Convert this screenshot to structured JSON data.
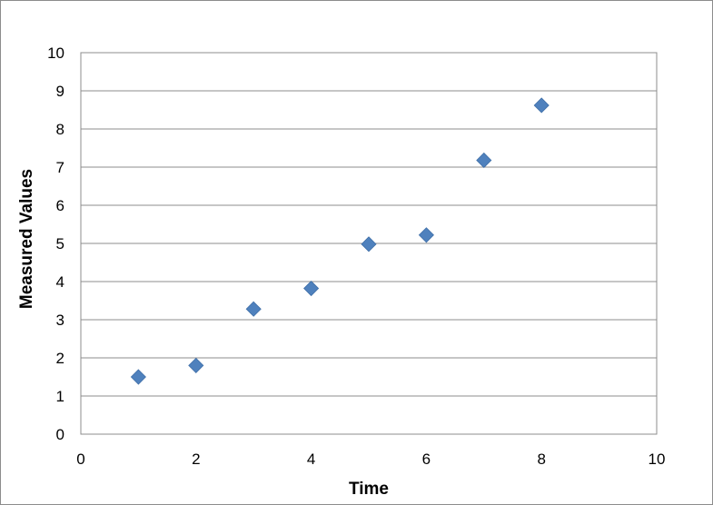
{
  "chart_data": {
    "type": "scatter",
    "title": "",
    "xlabel": "Time",
    "ylabel": "Measured Values",
    "xlim": [
      0,
      10
    ],
    "ylim": [
      0,
      10
    ],
    "xticks": [
      0,
      2,
      4,
      6,
      8,
      10
    ],
    "yticks": [
      0,
      1,
      2,
      3,
      4,
      5,
      6,
      7,
      8,
      9,
      10
    ],
    "grid": "horizontal",
    "legend": "none",
    "marker": "diamond",
    "color": "#4f81bd",
    "series": [
      {
        "x": [
          1,
          2,
          3,
          4,
          5,
          6,
          7,
          8
        ],
        "y": [
          1.5,
          1.8,
          3.28,
          3.82,
          4.98,
          5.22,
          7.18,
          8.62
        ]
      }
    ]
  }
}
